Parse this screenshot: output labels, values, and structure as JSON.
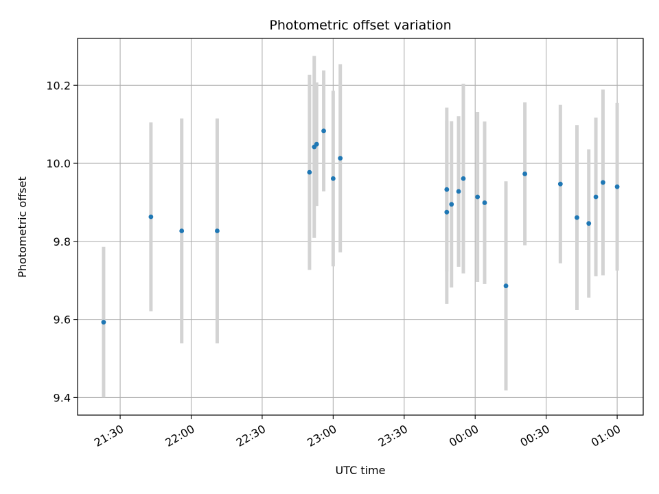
{
  "chart_data": {
    "type": "scatter",
    "title": "Photometric offset variation",
    "xlabel": "UTC time",
    "ylabel": "Photometric offset",
    "grid": true,
    "x_axis_type": "time",
    "xlim": [
      "21:12",
      "01:11"
    ],
    "ylim": [
      9.355,
      10.32
    ],
    "x_ticks": [
      "21:30",
      "22:00",
      "22:30",
      "23:00",
      "23:30",
      "00:00",
      "00:30",
      "01:00"
    ],
    "y_ticks": [
      9.4,
      9.6,
      9.8,
      10.0,
      10.2
    ],
    "y_tick_labels": [
      "9.4",
      "9.6",
      "9.8",
      "10.0",
      "10.2"
    ],
    "colors": {
      "point": "#1f77b4",
      "errorbar": "#d3d3d3",
      "grid": "#b0b0b0"
    },
    "points": [
      {
        "time": "21:23",
        "y": 9.593,
        "err": 0.193
      },
      {
        "time": "21:43",
        "y": 9.863,
        "err": 0.242
      },
      {
        "time": "21:56",
        "y": 9.827,
        "err": 0.288
      },
      {
        "time": "22:11",
        "y": 9.827,
        "err": 0.288
      },
      {
        "time": "22:50",
        "y": 9.977,
        "err": 0.25
      },
      {
        "time": "22:52",
        "y": 10.042,
        "err": 0.233
      },
      {
        "time": "22:53",
        "y": 10.049,
        "err": 0.158
      },
      {
        "time": "22:56",
        "y": 10.083,
        "err": 0.155
      },
      {
        "time": "23:00",
        "y": 9.961,
        "err": 0.225
      },
      {
        "time": "23:03",
        "y": 10.013,
        "err": 0.241
      },
      {
        "time": "23:48",
        "y": 9.875,
        "err": 0.235
      },
      {
        "time": "23:48",
        "y": 9.933,
        "err": 0.21
      },
      {
        "time": "23:50",
        "y": 9.895,
        "err": 0.213
      },
      {
        "time": "23:53",
        "y": 9.928,
        "err": 0.193
      },
      {
        "time": "23:55",
        "y": 9.961,
        "err": 0.243
      },
      {
        "time": "00:01",
        "y": 9.914,
        "err": 0.218
      },
      {
        "time": "00:04",
        "y": 9.899,
        "err": 0.208
      },
      {
        "time": "00:13",
        "y": 9.686,
        "err": 0.268
      },
      {
        "time": "00:21",
        "y": 9.973,
        "err": 0.183
      },
      {
        "time": "00:36",
        "y": 9.947,
        "err": 0.203
      },
      {
        "time": "00:43",
        "y": 9.861,
        "err": 0.237
      },
      {
        "time": "00:48",
        "y": 9.846,
        "err": 0.19
      },
      {
        "time": "00:51",
        "y": 9.914,
        "err": 0.203
      },
      {
        "time": "00:54",
        "y": 9.951,
        "err": 0.238
      },
      {
        "time": "01:00",
        "y": 9.94,
        "err": 0.215
      }
    ]
  }
}
